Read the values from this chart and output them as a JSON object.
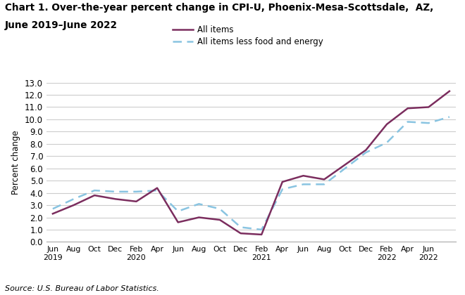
{
  "title_line1": "Chart 1. Over-the-year percent change in CPI-U, Phoenix-Mesa-Scottsdale,  AZ,",
  "title_line2": "June 2019–June 2022",
  "ylabel": "Percent change",
  "source": "Source: U.S. Bureau of Labor Statistics.",
  "legend_all_items": "All items",
  "legend_core": "All items less food and energy",
  "all_items": [
    2.3,
    3.0,
    3.8,
    3.5,
    3.3,
    4.4,
    1.6,
    2.0,
    1.8,
    0.7,
    0.6,
    4.9,
    5.4,
    5.1,
    6.3,
    7.5,
    9.6,
    10.9,
    11.0,
    12.3
  ],
  "core_items": [
    2.7,
    3.5,
    4.2,
    4.1,
    4.1,
    4.2,
    2.5,
    3.1,
    2.7,
    1.2,
    1.0,
    4.3,
    4.7,
    4.7,
    6.0,
    7.3,
    8.1,
    9.8,
    9.7,
    10.2
  ],
  "tick_positions": [
    0,
    1,
    2,
    3,
    4,
    5,
    6,
    7,
    8,
    9,
    10,
    11,
    12,
    13,
    14,
    15,
    16,
    17,
    18,
    19
  ],
  "tick_labels": [
    "Jun\n2019",
    "Aug",
    "Oct",
    "Dec",
    "Feb\n2020",
    "Apr",
    "Jun",
    "Aug",
    "Oct",
    "Dec",
    "Feb\n2021",
    "Apr",
    "Jun",
    "Aug",
    "Oct",
    "Dec",
    "Feb\n2022",
    "Apr",
    "Jun\n2022",
    ""
  ],
  "ylim": [
    0.0,
    13.0
  ],
  "yticks": [
    0.0,
    1.0,
    2.0,
    3.0,
    4.0,
    5.0,
    6.0,
    7.0,
    8.0,
    9.0,
    10.0,
    11.0,
    12.0,
    13.0
  ],
  "all_items_color": "#7B2D5E",
  "core_items_color": "#89C4E1",
  "background_color": "#ffffff"
}
